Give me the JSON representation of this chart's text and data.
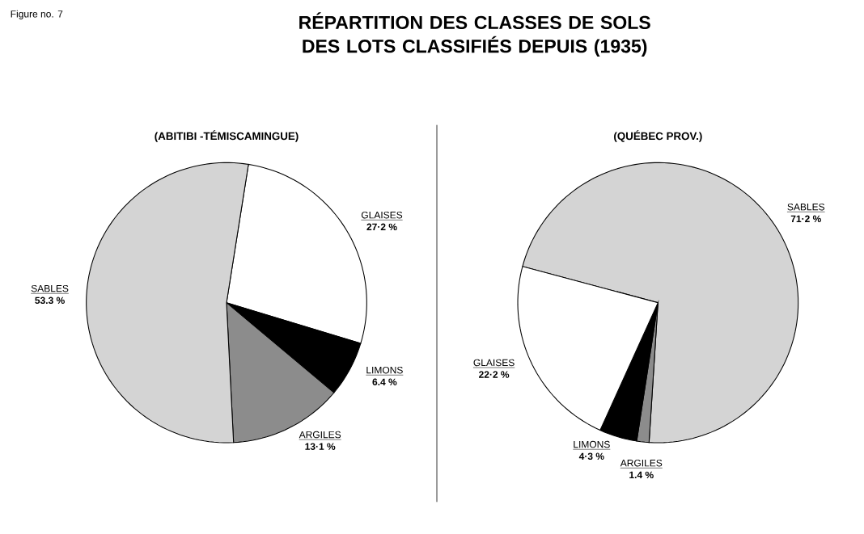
{
  "chart_data": [
    {
      "type": "pie",
      "title": "RÉPARTITION DES CLASSES DE SOLS DES LOTS CLASSIFIÉS DEPUIS (1935)",
      "subtitle": "(ABITIBI -TÉMISCAMINGUE)",
      "annotations": [
        "Figure no. 7"
      ],
      "categories": [
        "GLAISES",
        "LIMONS",
        "ARGILES",
        "SABLES"
      ],
      "values": [
        27.2,
        6.4,
        13.1,
        53.3
      ],
      "colors": [
        "#ffffff",
        "#000000",
        "#8c8c8c",
        "#d4d4d4"
      ],
      "value_labels": [
        "27·2 %",
        "6.4 %",
        "13·1 %",
        "53.3 %"
      ]
    },
    {
      "type": "pie",
      "subtitle": "(QUÉBEC PROV.)",
      "categories": [
        "SABLES",
        "ARGILES",
        "LIMONS",
        "GLAISES"
      ],
      "values": [
        71.2,
        1.4,
        4.3,
        22.2
      ],
      "colors": [
        "#d4d4d4",
        "#8c8c8c",
        "#000000",
        "#ffffff"
      ],
      "value_labels": [
        "71·2 %",
        "1.4 %",
        "4·3 %",
        "22·2 %"
      ]
    }
  ]
}
